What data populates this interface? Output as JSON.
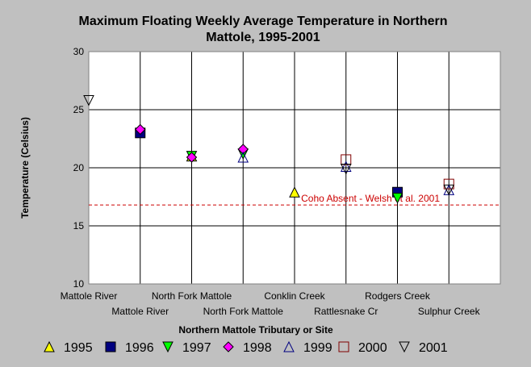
{
  "chart_data": {
    "type": "scatter",
    "title": "Maximum Floating Weekly Average Temperature in Northern Mattole, 1995-2001",
    "title_lines": [
      "Maximum Floating Weekly Average Temperature in Northern",
      "Mattole, 1995-2001"
    ],
    "xlabel": "Northern Mattole Tributary or Site",
    "ylabel": "Temperature (Celsius)",
    "ylim": [
      10,
      30
    ],
    "yticks": [
      10,
      15,
      20,
      25,
      30
    ],
    "grid": true,
    "legend_position": "bottom",
    "categories": [
      "Mattole River",
      "Mattole River",
      "North Fork Mattole",
      "North Fork Mattole",
      "Conklin Creek",
      "Rattlesnake Cr",
      "Rodgers Creek",
      "Sulphur Creek"
    ],
    "reference_line": {
      "y": 16.8,
      "label": "Coho Absent - Welsh et al. 2001",
      "color": "#cc0000"
    },
    "series": [
      {
        "name": "1995",
        "marker": "triangle-up",
        "fill": "#ffff00",
        "stroke": "#000000",
        "values": [
          null,
          null,
          21.0,
          null,
          17.9,
          null,
          null,
          null
        ]
      },
      {
        "name": "1996",
        "marker": "square",
        "fill": "#000080",
        "stroke": "#000000",
        "values": [
          null,
          23.0,
          null,
          null,
          null,
          null,
          17.9,
          null
        ]
      },
      {
        "name": "1997",
        "marker": "triangle-down",
        "fill": "#00ff00",
        "stroke": "#000000",
        "values": [
          null,
          null,
          21.0,
          21.2,
          null,
          null,
          17.4,
          null
        ]
      },
      {
        "name": "1998",
        "marker": "diamond",
        "fill": "#ff00ff",
        "stroke": "#000000",
        "values": [
          null,
          23.3,
          20.9,
          21.6,
          null,
          null,
          null,
          null
        ]
      },
      {
        "name": "1999",
        "marker": "triangle-up",
        "fill": "none",
        "stroke": "#000080",
        "values": [
          null,
          null,
          null,
          20.9,
          null,
          20.1,
          null,
          18.1
        ]
      },
      {
        "name": "2000",
        "marker": "square",
        "fill": "none",
        "stroke": "#800000",
        "values": [
          null,
          null,
          null,
          null,
          null,
          20.7,
          null,
          18.6
        ]
      },
      {
        "name": "2001",
        "marker": "triangle-down",
        "fill": "none",
        "stroke": "#000000",
        "values": [
          25.8,
          null,
          null,
          null,
          null,
          19.9,
          null,
          18.1
        ]
      }
    ]
  }
}
